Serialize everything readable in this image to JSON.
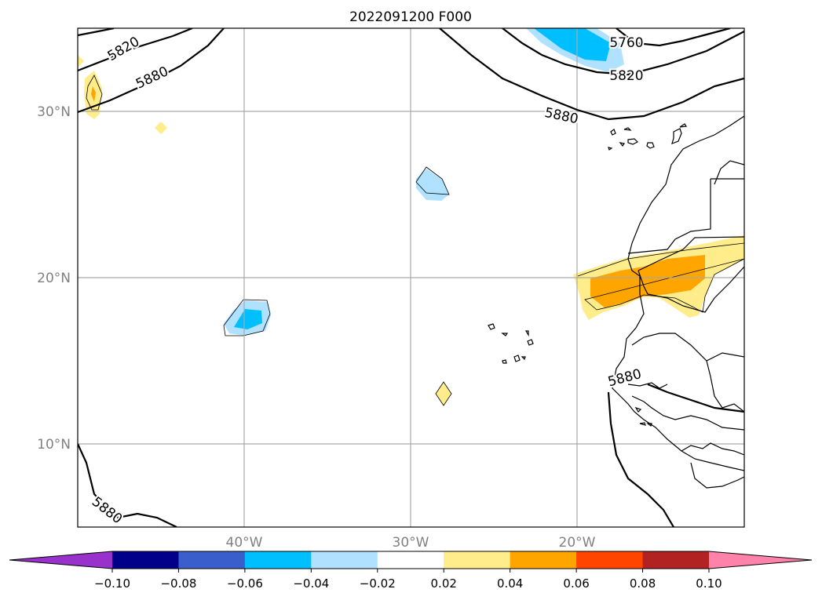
{
  "title": "2022091200 F000",
  "lat_labels": [
    "30°N",
    "20°N",
    "10°N"
  ],
  "lon_labels": [
    "40°W",
    "30°W",
    "20°W"
  ],
  "contour_labels": [
    "5820",
    "5880",
    "5880",
    "5760",
    "5820",
    "5880",
    "5880"
  ],
  "colorbar": {
    "colors": [
      "#9932CC",
      "#00008B",
      "#3A5FCD",
      "#00BFFF",
      "#B0E2FF",
      "#FFFFFF",
      "#FFEC8B",
      "#FFA500",
      "#FF4500",
      "#B22222",
      "#FF82AB"
    ],
    "tick_labels": [
      "−0.10",
      "−0.08",
      "−0.06",
      "−0.04",
      "−0.02",
      "0.02",
      "0.04",
      "0.06",
      "0.08",
      "0.10"
    ],
    "extend": "both"
  }
}
